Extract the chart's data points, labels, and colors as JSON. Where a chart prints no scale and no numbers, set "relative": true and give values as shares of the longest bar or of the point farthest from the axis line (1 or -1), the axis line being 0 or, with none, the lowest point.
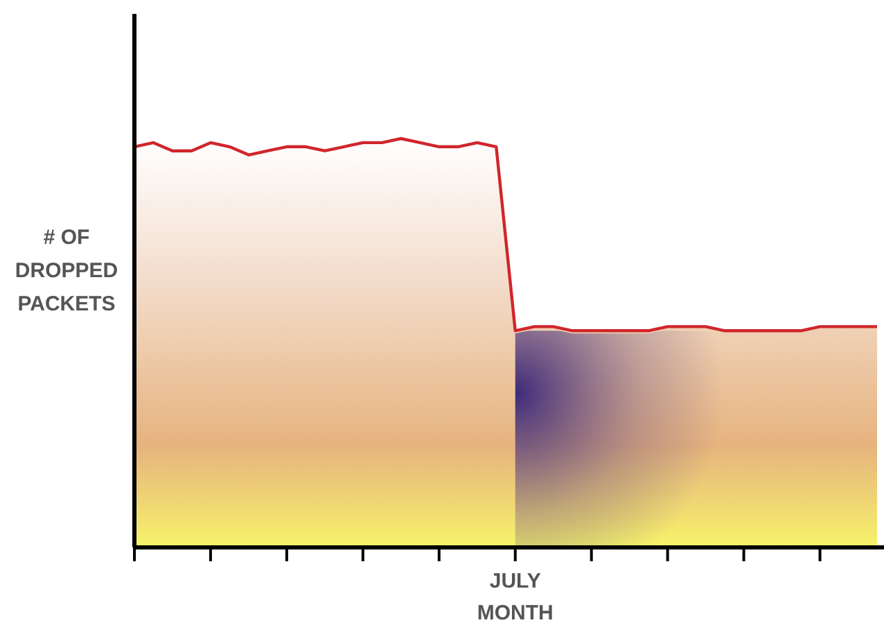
{
  "chart_data": {
    "type": "area",
    "relative": true,
    "xlabel": "MONTH",
    "ylabel": "# OF DROPPED PACKETS",
    "categories": [
      null,
      null,
      null,
      null,
      null,
      null,
      null,
      null,
      null,
      null,
      null,
      null,
      null,
      null,
      null,
      null,
      null,
      null,
      null,
      null,
      null,
      null,
      null,
      null,
      null,
      null,
      null,
      null,
      null,
      null,
      null,
      null,
      null,
      null,
      null,
      null,
      null,
      null,
      null,
      null
    ],
    "annotations": [
      "JULY"
    ],
    "series": [
      {
        "color": "#d0262b",
        "values": [
          0.98,
          0.99,
          0.97,
          0.97,
          0.99,
          0.98,
          0.96,
          0.97,
          0.98,
          0.98,
          0.97,
          0.98,
          0.99,
          0.99,
          1.0,
          0.99,
          0.98,
          0.98,
          0.99,
          0.98,
          0.53,
          0.54,
          0.54,
          0.53,
          0.53,
          0.53,
          0.53,
          0.53,
          0.54,
          0.54,
          0.54,
          0.53,
          0.53,
          0.53,
          0.53,
          0.53,
          0.54,
          0.54,
          0.54,
          0.54
        ]
      }
    ]
  }
}
